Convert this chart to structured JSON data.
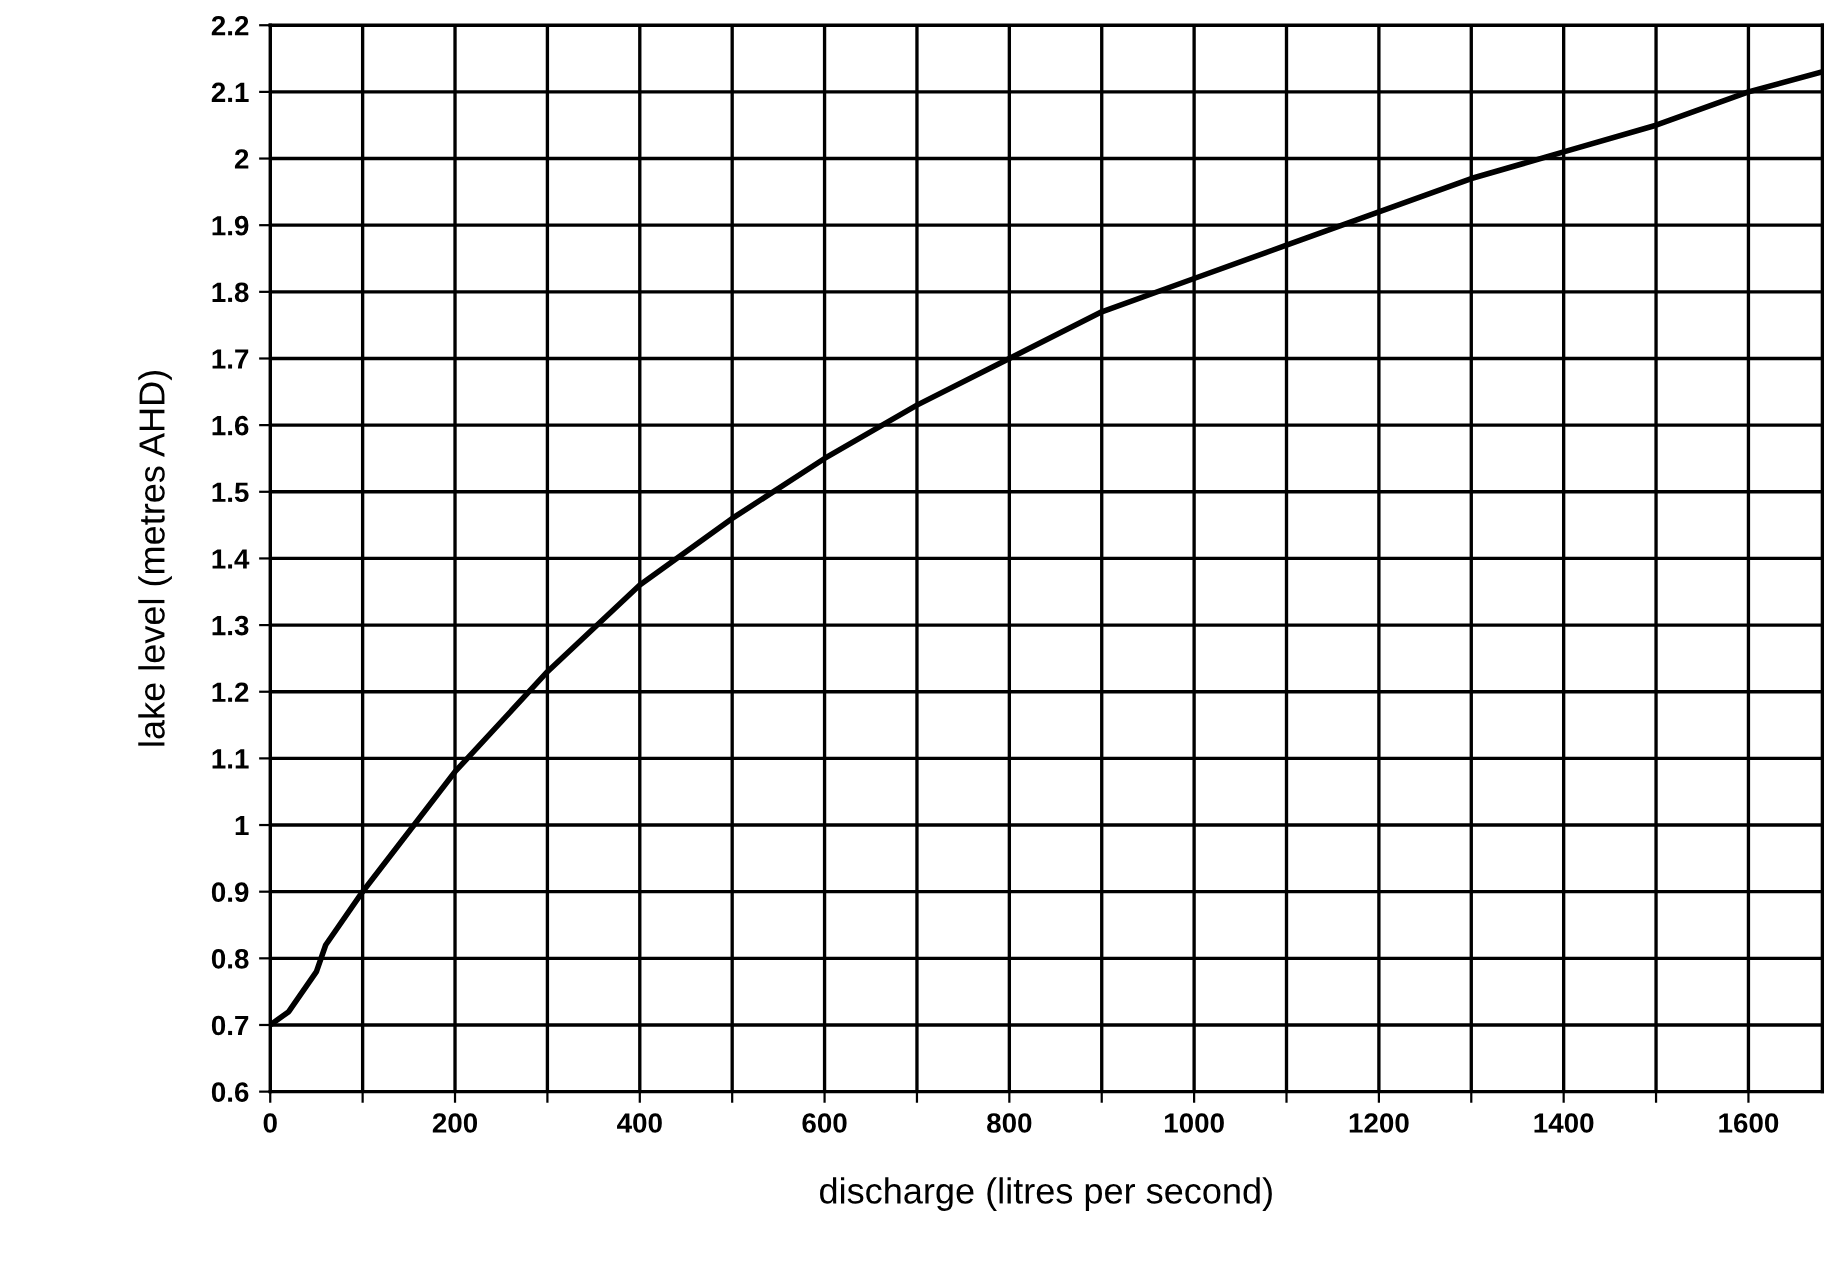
{
  "chart_data": {
    "type": "line",
    "xlabel": "discharge (litres per second)",
    "ylabel": "lake level (metres AHD)",
    "x": [
      0,
      20,
      50,
      60,
      100,
      200,
      300,
      400,
      500,
      600,
      700,
      800,
      900,
      1000,
      1100,
      1200,
      1300,
      1400,
      1500,
      1600,
      1680
    ],
    "series": [
      {
        "color": "#000000",
        "values": [
          0.7,
          0.72,
          0.78,
          0.82,
          0.9,
          1.08,
          1.23,
          1.36,
          1.46,
          1.55,
          1.63,
          1.7,
          1.77,
          1.82,
          1.87,
          1.92,
          1.97,
          2.01,
          2.05,
          2.1,
          2.13
        ]
      }
    ],
    "xlim": [
      0,
      1680
    ],
    "xticks": [
      0,
      {
        "value": 100,
        "label": null
      },
      200,
      {
        "value": 300,
        "label": null
      },
      400,
      {
        "value": 500,
        "label": null
      },
      600,
      {
        "value": 700,
        "label": null
      },
      800,
      {
        "value": 900,
        "label": null
      },
      1000,
      {
        "value": 1100,
        "label": null
      },
      1200,
      {
        "value": 1300,
        "label": null
      },
      1400,
      {
        "value": 1500,
        "label": null
      },
      1600
    ],
    "ylim": [
      0.6,
      2.2
    ],
    "yticks": [
      0.6,
      0.7,
      0.8,
      0.9,
      1,
      1.1,
      1.2,
      1.3,
      1.4,
      1.5,
      1.6,
      1.7,
      1.8,
      1.9,
      2,
      2.1,
      2.2
    ],
    "grid": true,
    "marker": "none",
    "line_style": "solid"
  }
}
